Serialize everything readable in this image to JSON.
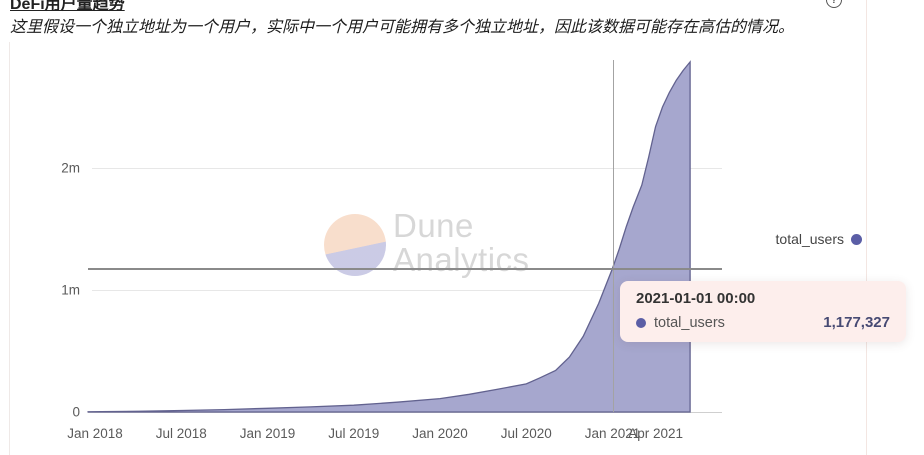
{
  "header": {
    "title": "DeFi用户量趋势",
    "subtitle": "这里假设一个独立地址为一个用户，实际中一个用户可能拥有多个独立地址，因此该数据可能存在高估的情况。",
    "help_icon_glyph": "?"
  },
  "watermark": {
    "line1": "Dune",
    "line2": "Analytics"
  },
  "legend": {
    "label": "total_users",
    "color": "#5b5ea6"
  },
  "tooltip": {
    "title": "2021-01-01 00:00",
    "series": "total_users",
    "value": "1,177,327",
    "dot_color": "#5b5ea6",
    "bg": "#fdeeec"
  },
  "chart_data": {
    "type": "area",
    "title": "DeFi用户量趋势",
    "legend_position": "right",
    "grid": true,
    "x_axis": {
      "labels": [
        "Jan 2018",
        "Jul 2018",
        "Jan 2019",
        "Jul 2019",
        "Jan 2020",
        "Jul 2020",
        "Jan 2021",
        "Apr 2021"
      ],
      "label_years": [
        2018.0,
        2018.5,
        2019.0,
        2019.5,
        2020.0,
        2020.5,
        2021.0,
        2021.25
      ]
    },
    "y_axis": {
      "ticks": [
        "0",
        "1m",
        "2m"
      ],
      "tick_values": [
        0,
        1000000,
        2000000
      ],
      "range": [
        0,
        2900000
      ]
    },
    "series": [
      {
        "name": "total_users",
        "line_color": "#62628f",
        "fill_color": "#a6a7ce",
        "points": [
          [
            2017.96,
            2000
          ],
          [
            2018.25,
            6000
          ],
          [
            2018.5,
            12000
          ],
          [
            2018.75,
            20000
          ],
          [
            2019.0,
            30000
          ],
          [
            2019.25,
            42000
          ],
          [
            2019.5,
            56000
          ],
          [
            2019.75,
            80000
          ],
          [
            2020.0,
            110000
          ],
          [
            2020.17,
            145000
          ],
          [
            2020.33,
            185000
          ],
          [
            2020.5,
            230000
          ],
          [
            2020.58,
            280000
          ],
          [
            2020.67,
            340000
          ],
          [
            2020.75,
            450000
          ],
          [
            2020.83,
            620000
          ],
          [
            2020.92,
            890000
          ],
          [
            2021.0,
            1177327
          ],
          [
            2021.04,
            1340000
          ],
          [
            2021.08,
            1520000
          ],
          [
            2021.12,
            1680000
          ],
          [
            2021.17,
            1860000
          ],
          [
            2021.21,
            2090000
          ],
          [
            2021.25,
            2340000
          ],
          [
            2021.29,
            2500000
          ],
          [
            2021.33,
            2620000
          ],
          [
            2021.37,
            2720000
          ],
          [
            2021.41,
            2800000
          ],
          [
            2021.45,
            2870000
          ]
        ]
      }
    ],
    "highlight": {
      "x_year": 2021.0,
      "date": "2021-01-01 00:00",
      "value": 1177327
    }
  }
}
